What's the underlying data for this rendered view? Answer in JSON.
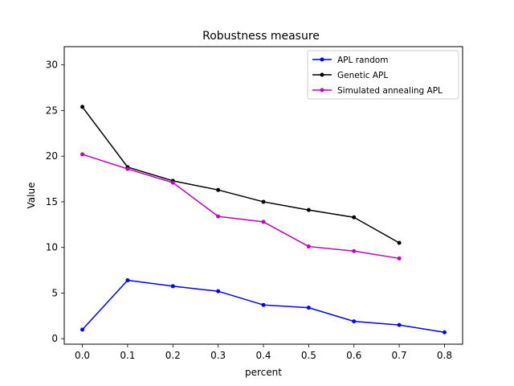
{
  "chart_data": {
    "type": "line",
    "title": "Robustness measure",
    "xlabel": "percent",
    "ylabel": "Value",
    "xlim": [
      -0.04,
      0.84
    ],
    "ylim": [
      -0.6,
      32
    ],
    "x_ticks": [
      0.0,
      0.1,
      0.2,
      0.3,
      0.4,
      0.5,
      0.6,
      0.7,
      0.8
    ],
    "x_tick_labels": [
      "0.0",
      "0.1",
      "0.2",
      "0.3",
      "0.4",
      "0.5",
      "0.6",
      "0.7",
      "0.8"
    ],
    "y_ticks": [
      0,
      5,
      10,
      15,
      20,
      25,
      30
    ],
    "y_tick_labels": [
      "0",
      "5",
      "10",
      "15",
      "20",
      "25",
      "30"
    ],
    "grid": false,
    "legend_position": "top-right",
    "series": [
      {
        "name": "APL random",
        "color": "#0000ff",
        "x": [
          0.0,
          0.1,
          0.2,
          0.3,
          0.4,
          0.5,
          0.6,
          0.7,
          0.8
        ],
        "y": [
          1.0,
          6.4,
          5.75,
          5.2,
          3.7,
          3.4,
          1.9,
          1.5,
          0.7
        ]
      },
      {
        "name": "Genetic APL",
        "color": "#000000",
        "x": [
          0.0,
          0.1,
          0.2,
          0.3,
          0.4,
          0.5,
          0.6,
          0.7
        ],
        "y": [
          25.4,
          18.8,
          17.3,
          16.3,
          15.0,
          14.1,
          13.3,
          10.5
        ]
      },
      {
        "name": "Simulated annealing APL",
        "color": "#bf00bf",
        "x": [
          0.0,
          0.1,
          0.2,
          0.3,
          0.4,
          0.5,
          0.6,
          0.7
        ],
        "y": [
          20.2,
          18.6,
          17.1,
          13.4,
          12.8,
          10.1,
          9.6,
          8.8
        ]
      }
    ]
  }
}
